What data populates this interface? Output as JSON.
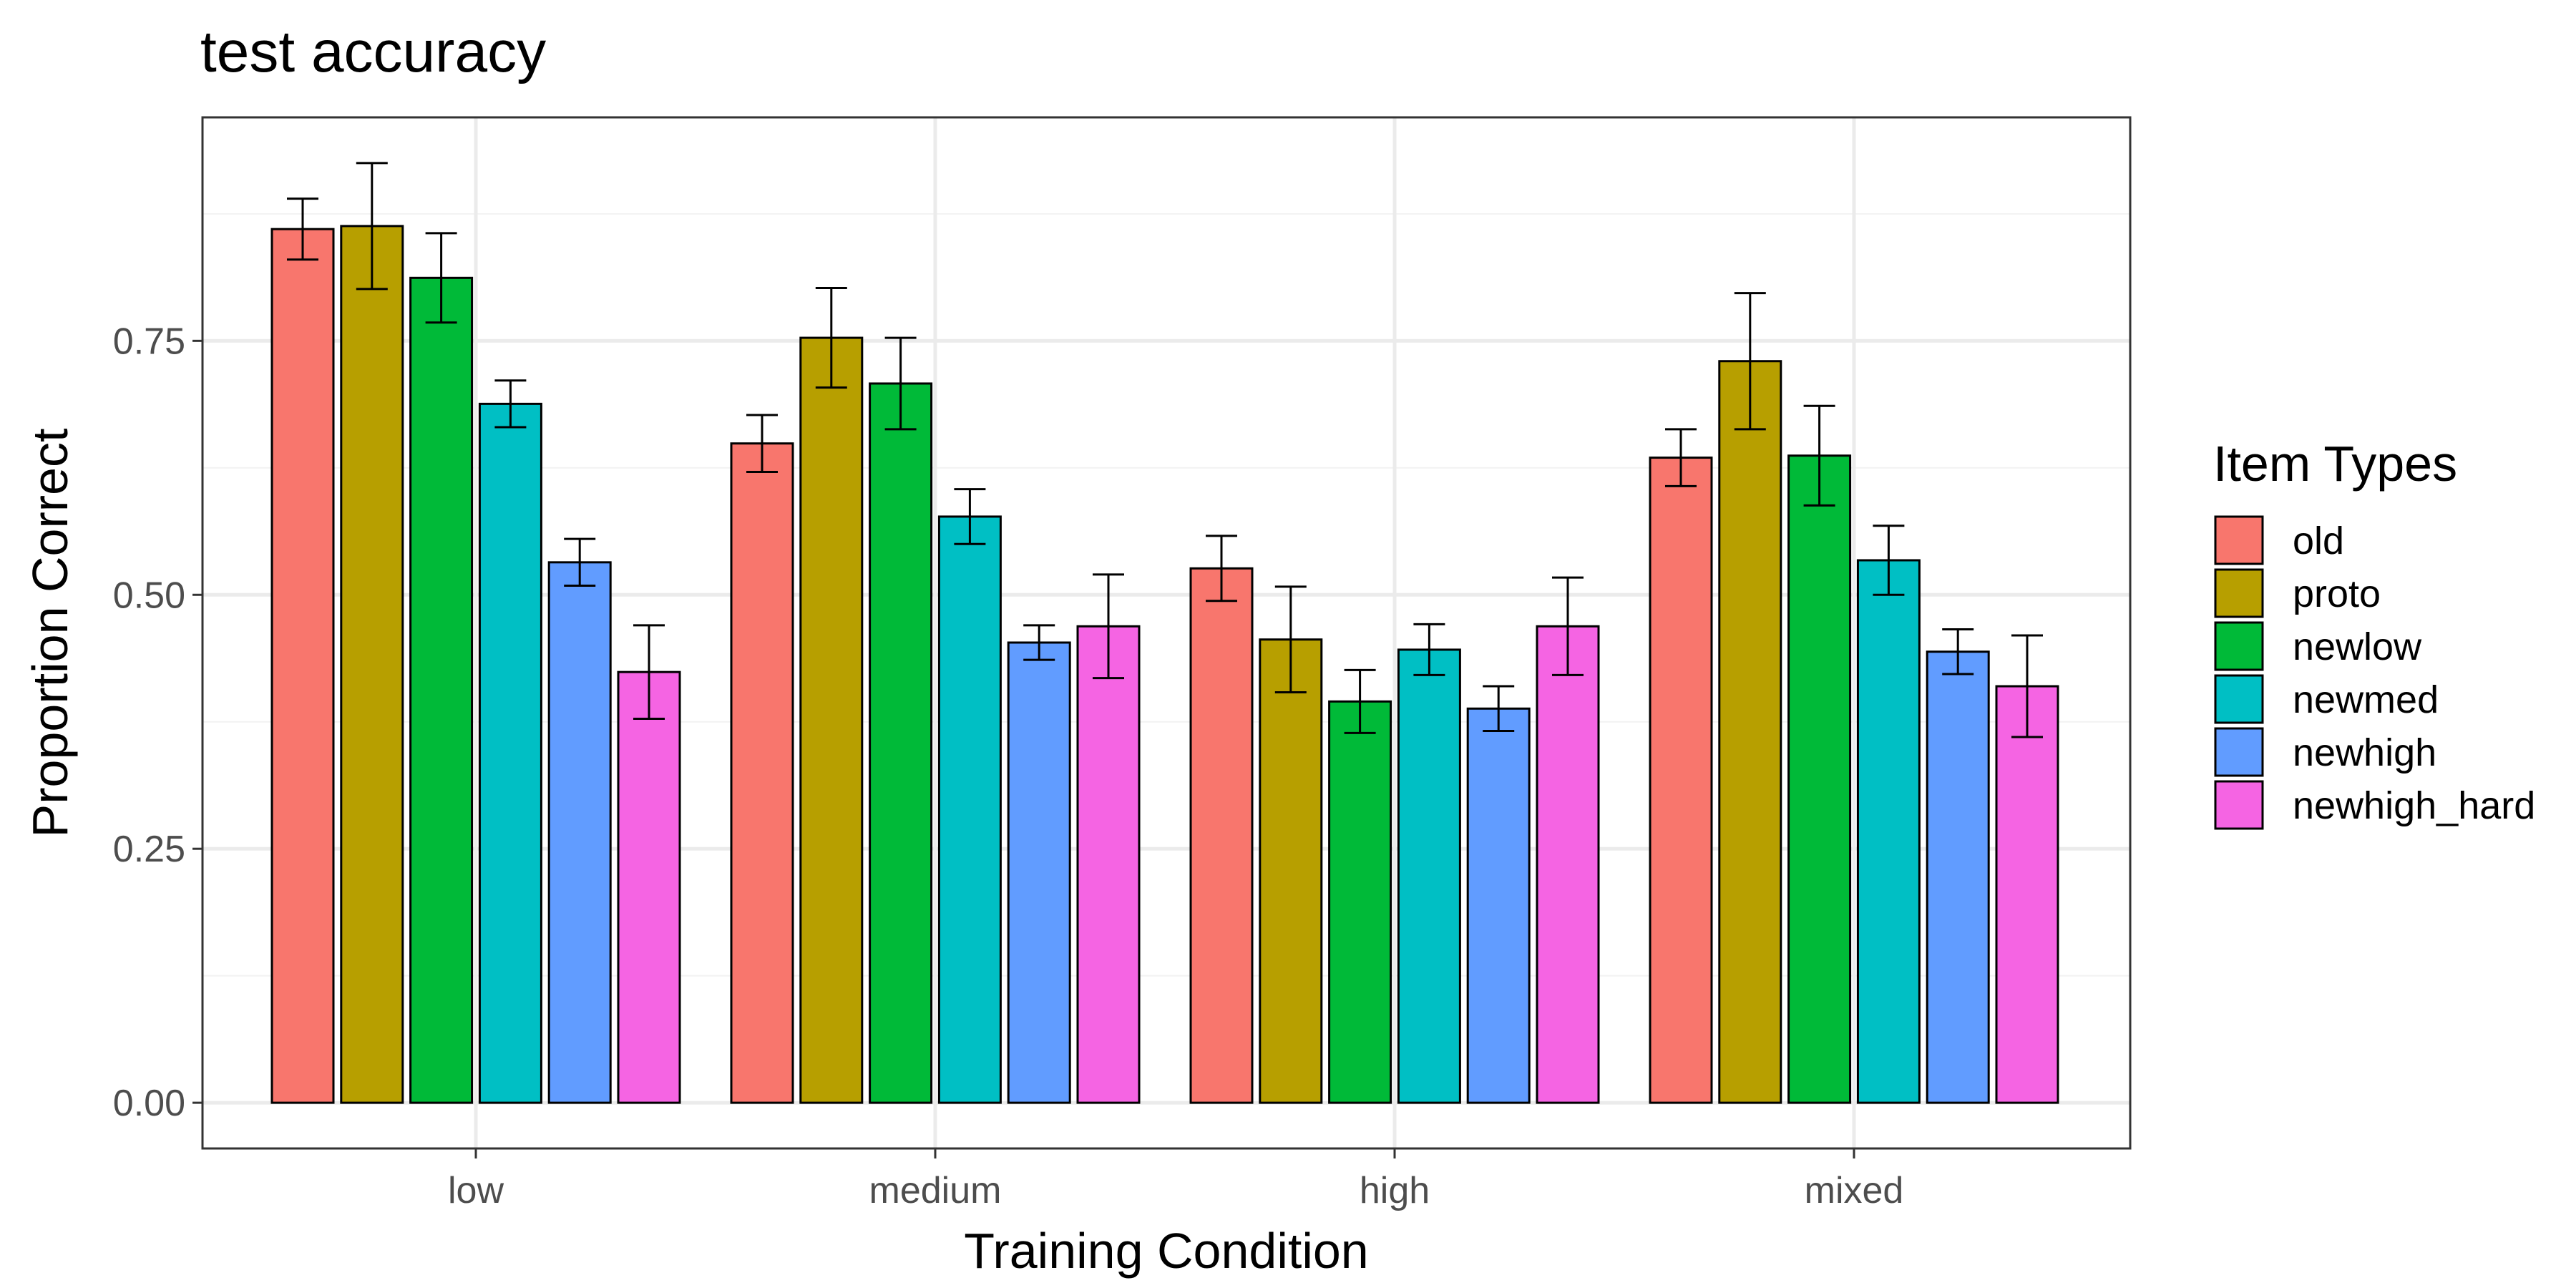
{
  "chart_data": {
    "type": "bar",
    "title": "test accuracy",
    "xlabel": "Training Condition",
    "ylabel": "Proportion Correct",
    "categories": [
      "low",
      "medium",
      "high",
      "mixed"
    ],
    "ylim": [
      -0.045,
      0.97
    ],
    "yticks": [
      0,
      0.25,
      0.5,
      0.75
    ],
    "ytick_labels": [
      "0.00",
      "0.25",
      "0.50",
      "0.75"
    ],
    "grid": true,
    "legend": {
      "title": "Item Types",
      "position": "right"
    },
    "series": [
      {
        "name": "old",
        "color": "#F8766D",
        "values": [
          0.86,
          0.649,
          0.526,
          0.635
        ],
        "err": [
          0.03,
          0.028,
          0.032,
          0.028
        ]
      },
      {
        "name": "proto",
        "color": "#B79F00",
        "values": [
          0.863,
          0.753,
          0.456,
          0.73
        ],
        "err": [
          0.062,
          0.049,
          0.052,
          0.067
        ]
      },
      {
        "name": "newlow",
        "color": "#00BA38",
        "values": [
          0.812,
          0.708,
          0.395,
          0.637
        ],
        "err": [
          0.044,
          0.045,
          0.031,
          0.049
        ]
      },
      {
        "name": "newmed",
        "color": "#00BFC4",
        "values": [
          0.688,
          0.577,
          0.446,
          0.534
        ],
        "err": [
          0.023,
          0.027,
          0.025,
          0.034
        ]
      },
      {
        "name": "newhigh",
        "color": "#619CFF",
        "values": [
          0.532,
          0.453,
          0.388,
          0.444
        ],
        "err": [
          0.023,
          0.017,
          0.022,
          0.022
        ]
      },
      {
        "name": "newhigh_hard",
        "color": "#F564E3",
        "values": [
          0.424,
          0.469,
          0.469,
          0.41
        ],
        "err": [
          0.046,
          0.051,
          0.048,
          0.05
        ]
      }
    ]
  }
}
